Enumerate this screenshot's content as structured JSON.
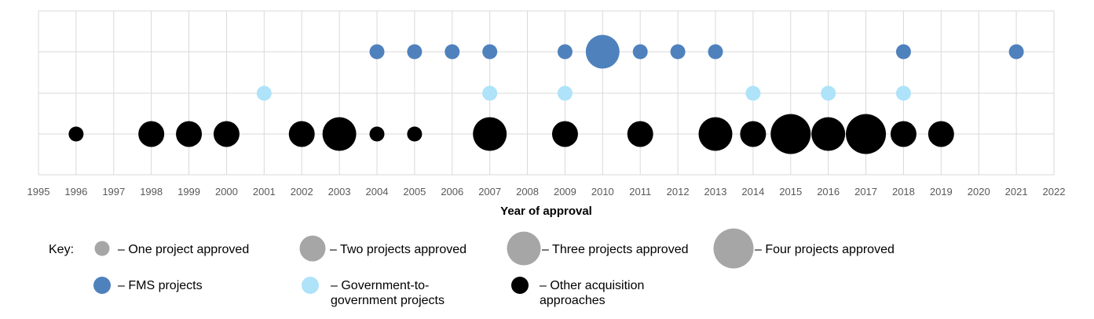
{
  "chart_data": {
    "type": "scatter",
    "subtype": "bubble",
    "xlabel": "Year of approval",
    "xlim": [
      1995,
      2022
    ],
    "x_ticks": [
      "1995",
      "1996",
      "1997",
      "1998",
      "1999",
      "2000",
      "2001",
      "2002",
      "2003",
      "2004",
      "2005",
      "2006",
      "2007",
      "2008",
      "2009",
      "2010",
      "2011",
      "2012",
      "2013",
      "2014",
      "2015",
      "2016",
      "2017",
      "2018",
      "2019",
      "2020",
      "2021",
      "2022"
    ],
    "grid": true,
    "size_unit": "projects approved",
    "series": [
      {
        "name": "FMS projects",
        "color": "#4F81BD",
        "points": [
          {
            "x": 2004,
            "count": 1
          },
          {
            "x": 2005,
            "count": 1
          },
          {
            "x": 2006,
            "count": 1
          },
          {
            "x": 2007,
            "count": 1
          },
          {
            "x": 2009,
            "count": 1
          },
          {
            "x": 2010,
            "count": 3
          },
          {
            "x": 2011,
            "count": 1
          },
          {
            "x": 2012,
            "count": 1
          },
          {
            "x": 2013,
            "count": 1
          },
          {
            "x": 2018,
            "count": 1
          },
          {
            "x": 2021,
            "count": 1
          }
        ]
      },
      {
        "name": "Government-to-government projects",
        "color": "#AEE3F9",
        "points": [
          {
            "x": 2001,
            "count": 1
          },
          {
            "x": 2007,
            "count": 1
          },
          {
            "x": 2009,
            "count": 1
          },
          {
            "x": 2014,
            "count": 1
          },
          {
            "x": 2016,
            "count": 1
          },
          {
            "x": 2018,
            "count": 1
          }
        ]
      },
      {
        "name": "Other acquisition approaches",
        "color": "#000000",
        "points": [
          {
            "x": 1996,
            "count": 1
          },
          {
            "x": 1998,
            "count": 2
          },
          {
            "x": 1999,
            "count": 2
          },
          {
            "x": 2000,
            "count": 2
          },
          {
            "x": 2002,
            "count": 2
          },
          {
            "x": 2003,
            "count": 3
          },
          {
            "x": 2004,
            "count": 1
          },
          {
            "x": 2005,
            "count": 1
          },
          {
            "x": 2007,
            "count": 3
          },
          {
            "x": 2009,
            "count": 2
          },
          {
            "x": 2011,
            "count": 2
          },
          {
            "x": 2013,
            "count": 3
          },
          {
            "x": 2014,
            "count": 2
          },
          {
            "x": 2015,
            "count": 4
          },
          {
            "x": 2016,
            "count": 3
          },
          {
            "x": 2017,
            "count": 4
          },
          {
            "x": 2018,
            "count": 2
          },
          {
            "x": 2019,
            "count": 2
          }
        ]
      }
    ]
  },
  "legend": {
    "key_label": "Key:",
    "size_color": "#A6A6A6",
    "sizes": [
      {
        "count": 1,
        "label": "– One project approved"
      },
      {
        "count": 2,
        "label": "– Two projects approved"
      },
      {
        "count": 3,
        "label": "– Three projects approved"
      },
      {
        "count": 4,
        "label": "– Four projects approved"
      }
    ],
    "types": [
      {
        "color": "#4F81BD",
        "lines": [
          "– FMS projects"
        ]
      },
      {
        "color": "#AEE3F9",
        "lines": [
          "– Government-to-",
          "government projects"
        ]
      },
      {
        "color": "#000000",
        "lines": [
          "– Other acquisition",
          "approaches"
        ]
      }
    ]
  }
}
